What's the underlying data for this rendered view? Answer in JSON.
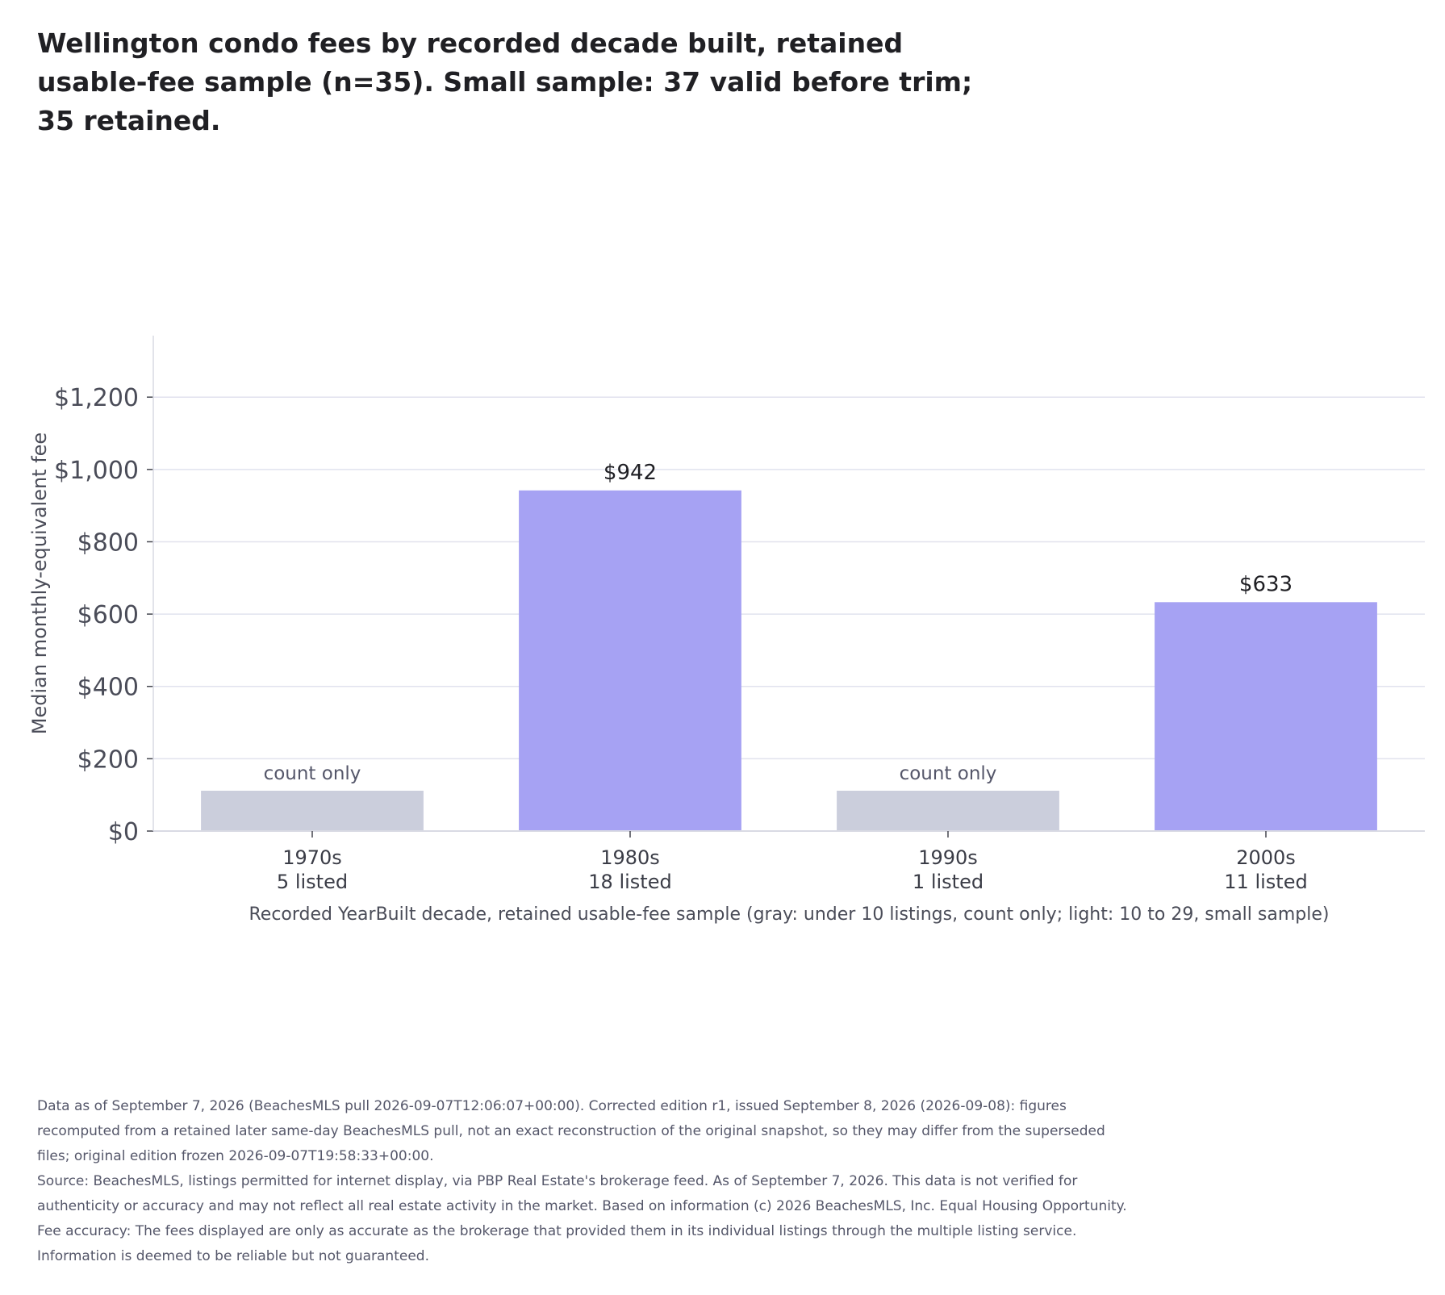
{
  "title": "Wellington condo fees by recorded decade built, retained usable-fee sample (n=35). Small sample: 37 valid before trim; 35 retained.",
  "footer": {
    "edition_note": "Data as of September 7, 2026 (BeachesMLS pull 2026-09-07T12:06:07+00:00). Corrected edition r1, issued September 8, 2026 (2026-09-08): figures recomputed from a retained later same-day BeachesMLS pull, not an exact reconstruction of the original snapshot, so they may differ from the superseded files; original edition frozen 2026-09-07T19:58:33+00:00.",
    "source_note": "Source: BeachesMLS, listings permitted for internet display, via PBP Real Estate's brokerage feed. As of September 7, 2026. This data is not verified for authenticity or accuracy and may not reflect all real estate activity in the market. Based on information (c) 2026 BeachesMLS, Inc. Equal Housing Opportunity. Fee accuracy: The fees displayed are only as accurate as the brokerage that provided them in its individual listings through the multiple listing service. Information is deemed to be reliable but not guaranteed."
  },
  "chart_data": {
    "type": "bar",
    "title": "Wellington condo fees by recorded decade built, retained usable-fee sample (n=35). Small sample: 37 valid before trim; 35 retained.",
    "xlabel": "Recorded YearBuilt decade, retained usable-fee sample (gray: under 10 listings, count only; light: 10 to 29, small sample)",
    "ylabel": "Median monthly-equivalent fee",
    "ylim": [
      0,
      1370
    ],
    "yticks": [
      0,
      200,
      400,
      600,
      800,
      1000,
      1200
    ],
    "ytick_labels": [
      "$0",
      "$200",
      "$400",
      "$600",
      "$800",
      "$1,000",
      "$1,200"
    ],
    "grid": "horizontal",
    "categories": [
      "1970s",
      "1980s",
      "1990s",
      "2000s"
    ],
    "counts": [
      "5 listed",
      "18 listed",
      "1 listed",
      "11 listed"
    ],
    "values": [
      null,
      942,
      null,
      633
    ],
    "count_only_label": "count only",
    "value_labels": [
      "count only",
      "$942",
      "count only",
      "$633"
    ],
    "colors": {
      "count_only": "#cbcedc",
      "small_sample": "#a6a2f3",
      "grid": "#e1e2ee",
      "axis": "#d9dae4",
      "text": "#55576a"
    }
  }
}
